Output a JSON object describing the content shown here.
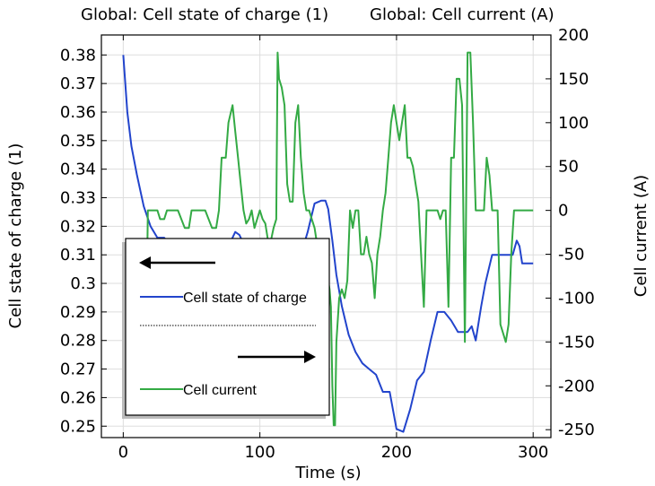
{
  "titles": {
    "left": "Global: Cell state of charge (1)",
    "right": "Global: Cell current (A)"
  },
  "axes": {
    "xlabel": "Time (s)",
    "ylabel_left": "Cell state of charge (1)",
    "ylabel_right": "Cell current (A)"
  },
  "legend": {
    "entries": [
      {
        "label": "Cell state of charge",
        "color": "#2244cc",
        "axis": "left"
      },
      {
        "label": "Cell current",
        "color": "#33aa44",
        "axis": "right"
      }
    ]
  },
  "chart_data": {
    "type": "line",
    "x_ticks": [
      "0",
      "100",
      "200",
      "300"
    ],
    "y_left_ticks": [
      "0.25",
      "0.26",
      "0.27",
      "0.28",
      "0.29",
      "0.3",
      "0.31",
      "0.32",
      "0.33",
      "0.34",
      "0.35",
      "0.36",
      "0.37",
      "0.38"
    ],
    "y_right_ticks": [
      "-250",
      "-200",
      "-150",
      "-100",
      "-50",
      "0",
      "50",
      "100",
      "150",
      "200"
    ],
    "xlim": [
      -16,
      313
    ],
    "ylim_left": [
      0.246,
      0.387
    ],
    "ylim_right": [
      -259,
      200
    ],
    "grid": true,
    "series": [
      {
        "name": "Cell state of charge",
        "axis": "left",
        "color": "#2244cc",
        "x": [
          0,
          3,
          6,
          10,
          15,
          20,
          25,
          30,
          35,
          40,
          45,
          50,
          55,
          60,
          65,
          70,
          75,
          78,
          82,
          85,
          88,
          92,
          96,
          100,
          105,
          110,
          115,
          120,
          125,
          130,
          135,
          138,
          140,
          145,
          148,
          150,
          153,
          156,
          160,
          165,
          170,
          175,
          180,
          185,
          190,
          195,
          200,
          205,
          210,
          215,
          220,
          225,
          230,
          235,
          240,
          245,
          250,
          252,
          255,
          258,
          262,
          265,
          270,
          275,
          280,
          285,
          288,
          290,
          292,
          295,
          300
        ],
        "y": [
          0.38,
          0.36,
          0.348,
          0.338,
          0.327,
          0.32,
          0.316,
          0.316,
          0.313,
          0.311,
          0.31,
          0.309,
          0.308,
          0.307,
          0.305,
          0.303,
          0.308,
          0.314,
          0.318,
          0.317,
          0.314,
          0.31,
          0.306,
          0.303,
          0.303,
          0.302,
          0.302,
          0.302,
          0.304,
          0.31,
          0.318,
          0.324,
          0.328,
          0.329,
          0.329,
          0.326,
          0.315,
          0.303,
          0.292,
          0.282,
          0.276,
          0.272,
          0.27,
          0.268,
          0.262,
          0.262,
          0.249,
          0.248,
          0.256,
          0.266,
          0.269,
          0.28,
          0.29,
          0.29,
          0.287,
          0.283,
          0.283,
          0.283,
          0.285,
          0.28,
          0.292,
          0.3,
          0.31,
          0.31,
          0.31,
          0.31,
          0.315,
          0.313,
          0.307,
          0.307,
          0.307
        ]
      },
      {
        "name": "Cell current",
        "axis": "right",
        "color": "#33aa44",
        "x": [
          0,
          10,
          16,
          18,
          20,
          22,
          25,
          27,
          30,
          32,
          36,
          40,
          45,
          48,
          50,
          55,
          60,
          65,
          68,
          70,
          72,
          74,
          75,
          77,
          80,
          82,
          84,
          86,
          88,
          90,
          92,
          94,
          96,
          98,
          100,
          102,
          104,
          106,
          108,
          110,
          112,
          113,
          114,
          116,
          118,
          120,
          122,
          124,
          126,
          128,
          130,
          132,
          134,
          136,
          138,
          140,
          142,
          144,
          146,
          148,
          150,
          151,
          152,
          153,
          154,
          155,
          156,
          158,
          160,
          162,
          164,
          166,
          168,
          170,
          172,
          174,
          176,
          178,
          180,
          182,
          184,
          186,
          188,
          190,
          192,
          194,
          196,
          198,
          200,
          202,
          204,
          206,
          208,
          210,
          212,
          214,
          216,
          218,
          220,
          222,
          224,
          226,
          228,
          230,
          232,
          234,
          236,
          238,
          240,
          242,
          244,
          246,
          248,
          250,
          252,
          254,
          256,
          258,
          260,
          262,
          264,
          266,
          268,
          270,
          272,
          274,
          276,
          278,
          280,
          282,
          284,
          286,
          288,
          290,
          292,
          294,
          300
        ],
        "y": [
          -235,
          -235,
          -235,
          0,
          0,
          0,
          0,
          -10,
          -10,
          0,
          0,
          0,
          -20,
          -20,
          0,
          0,
          0,
          -20,
          -20,
          0,
          60,
          60,
          60,
          100,
          120,
          90,
          60,
          30,
          0,
          -15,
          -10,
          0,
          -20,
          -10,
          0,
          -10,
          -15,
          -35,
          -35,
          -20,
          -10,
          180,
          150,
          140,
          120,
          30,
          10,
          10,
          100,
          120,
          60,
          20,
          0,
          0,
          -10,
          -20,
          -40,
          -50,
          -60,
          -70,
          -80,
          -90,
          -110,
          -200,
          -245,
          -245,
          -150,
          -100,
          -90,
          -100,
          -80,
          0,
          -20,
          0,
          0,
          -50,
          -50,
          -30,
          -50,
          -60,
          -100,
          -50,
          -30,
          0,
          20,
          60,
          100,
          120,
          100,
          80,
          100,
          120,
          60,
          60,
          50,
          30,
          10,
          -50,
          -110,
          0,
          0,
          0,
          0,
          0,
          -10,
          0,
          0,
          -110,
          60,
          60,
          150,
          150,
          120,
          -150,
          180,
          180,
          100,
          0,
          0,
          0,
          0,
          60,
          40,
          0,
          0,
          0,
          -130,
          -140,
          -150,
          -130,
          -50,
          0,
          0,
          0,
          0,
          0,
          0
        ]
      }
    ]
  }
}
